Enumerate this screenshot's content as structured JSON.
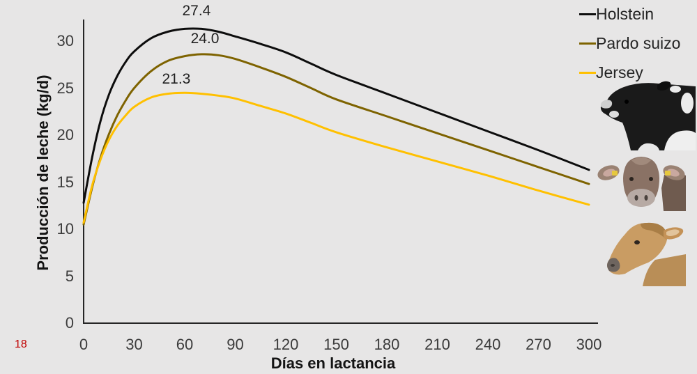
{
  "page": {
    "page_number": "18",
    "background_color": "#e7e6e6"
  },
  "chart_data": {
    "type": "line",
    "title": "",
    "xlabel": "Días en lactancia",
    "ylabel": "Producción de leche (kg/d)",
    "xlim": [
      0,
      300
    ],
    "ylim": [
      0,
      32
    ],
    "x_ticks": [
      0,
      30,
      60,
      90,
      120,
      150,
      180,
      210,
      240,
      270,
      300
    ],
    "y_ticks": [
      0,
      5,
      10,
      15,
      20,
      25,
      30
    ],
    "grid": false,
    "legend_position": "top-right",
    "axis_color": "#262626",
    "x": [
      0,
      5,
      10,
      15,
      20,
      25,
      30,
      40,
      50,
      60,
      70,
      80,
      90,
      105,
      120,
      135,
      150,
      180,
      210,
      240,
      270,
      300
    ],
    "series": [
      {
        "name": "Holstein",
        "color": "#0d0d0d",
        "peak_label": {
          "text": "27.4",
          "day": 67,
          "value": 33.2
        },
        "values": [
          12.8,
          17.6,
          21.5,
          24.3,
          26.3,
          27.8,
          28.9,
          30.3,
          31.0,
          31.3,
          31.3,
          31.0,
          30.5,
          29.7,
          28.8,
          27.6,
          26.4,
          24.4,
          22.4,
          20.4,
          18.4,
          16.3
        ]
      },
      {
        "name": "Pardo suizo",
        "color": "#7e6300",
        "peak_label": {
          "text": "24.0",
          "day": 72,
          "value": 30.2
        },
        "values": [
          10.5,
          14.4,
          17.6,
          20.1,
          22.1,
          23.7,
          25.0,
          26.8,
          27.9,
          28.4,
          28.6,
          28.5,
          28.1,
          27.2,
          26.2,
          25.0,
          23.8,
          22.0,
          20.2,
          18.4,
          16.6,
          14.8
        ]
      },
      {
        "name": "Jersey",
        "color": "#ffc000",
        "peak_label": {
          "text": "21.3",
          "day": 55,
          "value": 25.9
        },
        "values": [
          10.7,
          14.6,
          17.4,
          19.5,
          21.0,
          22.1,
          23.0,
          24.0,
          24.4,
          24.5,
          24.4,
          24.2,
          23.9,
          23.1,
          22.3,
          21.3,
          20.3,
          18.7,
          17.2,
          15.7,
          14.1,
          12.6
        ]
      }
    ]
  },
  "images": {
    "holstein": "holstein-cow-photo",
    "pardo_suizo": "pardo-suizo-cow-photo",
    "jersey": "jersey-cow-photo"
  }
}
